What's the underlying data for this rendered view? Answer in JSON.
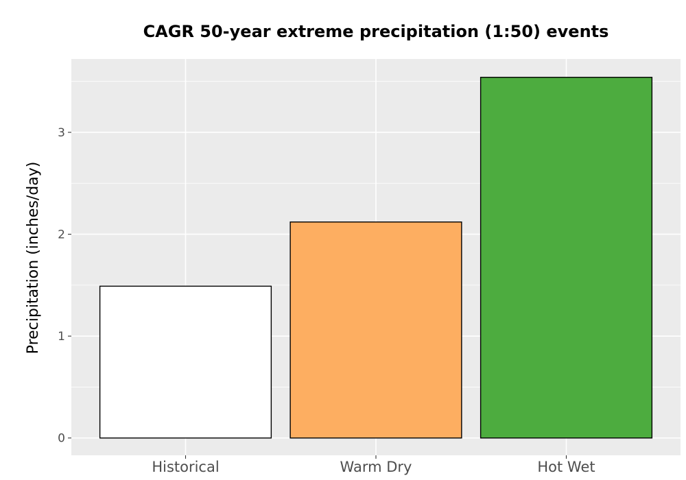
{
  "chart_data": {
    "type": "bar",
    "title": "CAGR 50-year extreme precipitation (1:50) events",
    "xlabel": "",
    "ylabel": "Precipitation (inches/day)",
    "categories": [
      "Historical",
      "Warm Dry",
      "Hot Wet"
    ],
    "values": [
      1.49,
      2.12,
      3.54
    ],
    "colors": [
      "#ffffff",
      "#fdae61",
      "#4dac3f"
    ],
    "ylim": [
      -0.17,
      3.72
    ],
    "yticks": [
      "0",
      "1",
      "2",
      "3"
    ],
    "grid": true,
    "legend": "none",
    "panel_background": "#ebebeb",
    "bar_outline": "#000000"
  }
}
